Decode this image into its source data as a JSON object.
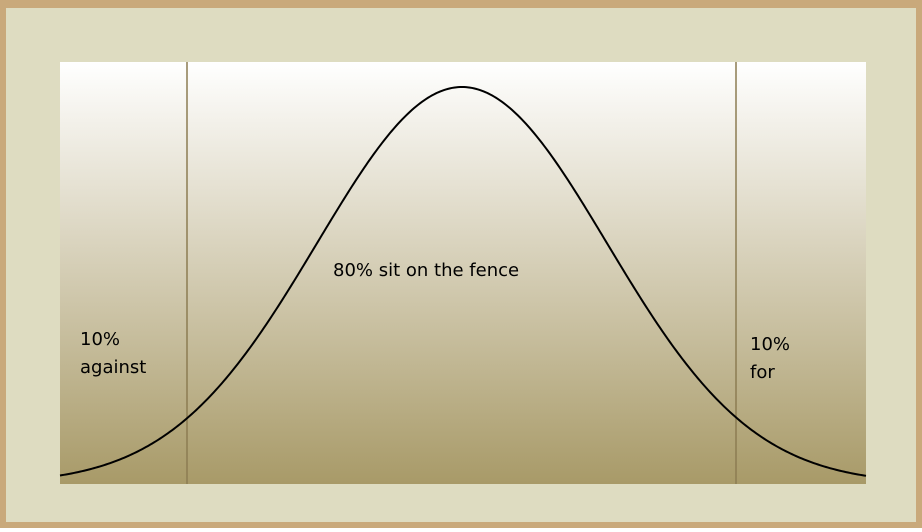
{
  "labels": {
    "left_percent": "10%",
    "left_text": "against",
    "center": "80% sit on the fence",
    "right_percent": "10%",
    "right_text": "for"
  }
}
